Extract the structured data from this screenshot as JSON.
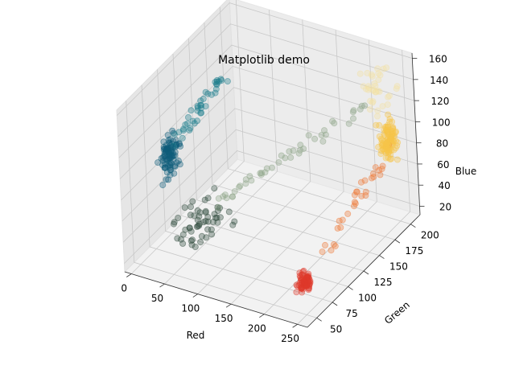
{
  "chart_data": {
    "type": "scatter",
    "projection": "3d",
    "title": "Matplotlib demo",
    "xlabel": "Red",
    "ylabel": "Green",
    "zlabel": "Blue",
    "x_ticks": [
      "0",
      "50",
      "100",
      "150",
      "200",
      "250"
    ],
    "y_ticks": [
      "50",
      "75",
      "100",
      "125",
      "150",
      "175",
      "200"
    ],
    "z_ticks": [
      "20",
      "40",
      "60",
      "80",
      "100",
      "120",
      "140",
      "160"
    ],
    "xlim": [
      -10,
      265
    ],
    "ylim": [
      35,
      215
    ],
    "zlim": [
      12,
      165
    ],
    "grid": true,
    "pane_color": "#ebebeb",
    "grid_color": "#c8c8c8",
    "marker_alpha": 0.35,
    "clusters": [
      {
        "label": "dark teal cluster",
        "center": [
          14,
          88,
          95
        ],
        "spread": [
          6,
          8,
          12
        ],
        "count": 90,
        "color": "#0d5d7a"
      },
      {
        "label": "teal streak",
        "start": [
          20,
          95,
          110
        ],
        "end": [
          55,
          135,
          150
        ],
        "count": 40,
        "color": "#1d7d8d"
      },
      {
        "label": "dark sparse group",
        "center": [
          55,
          95,
          40
        ],
        "spread": [
          22,
          20,
          12
        ],
        "count": 55,
        "color": "#2f4a3c"
      },
      {
        "label": "grey-green transition",
        "start": [
          70,
          100,
          55
        ],
        "end": [
          215,
          190,
          120
        ],
        "count": 45,
        "color": "#8fa68a"
      },
      {
        "label": "red cluster",
        "center": [
          240,
          60,
          35
        ],
        "spread": [
          6,
          6,
          6
        ],
        "count": 70,
        "color": "#e03a2c"
      },
      {
        "label": "orange streak",
        "start": [
          240,
          70,
          40
        ],
        "end": [
          250,
          190,
          85
        ],
        "count": 30,
        "color": "#ef7a3a"
      },
      {
        "label": "yellow cluster",
        "center": [
          248,
          190,
          95
        ],
        "spread": [
          6,
          8,
          12
        ],
        "count": 110,
        "color": "#f7c54a"
      },
      {
        "label": "pale yellow group",
        "center": [
          230,
          195,
          135
        ],
        "spread": [
          15,
          10,
          15
        ],
        "count": 35,
        "color": "#f3e2a6"
      }
    ]
  }
}
